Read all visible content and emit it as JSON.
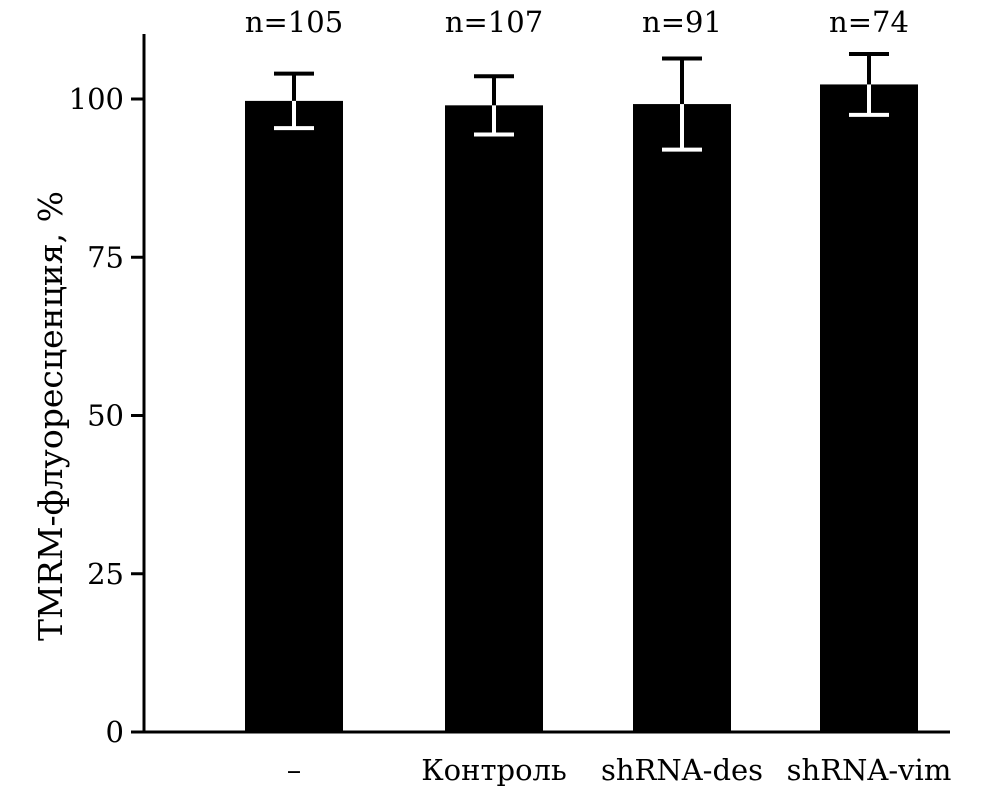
{
  "chart_data": {
    "type": "bar",
    "title": "",
    "xlabel": "",
    "ylabel": "TMRM-флуоресценция, %",
    "ylim": [
      0,
      110
    ],
    "yticks": [
      0,
      25,
      50,
      75,
      100
    ],
    "ytick_labels": [
      "0",
      "25",
      "50",
      "75",
      "100"
    ],
    "categories": [
      "–",
      "Контроль",
      "shRNA-des",
      "shRNA-vim"
    ],
    "values": [
      99.7,
      99.0,
      99.2,
      102.3
    ],
    "errors": [
      4.3,
      4.6,
      7.2,
      4.8
    ],
    "n_labels": [
      "n=105",
      "n=107",
      "n=91",
      "n=74"
    ],
    "bar_color": "#000000",
    "error_bar_color": "#ffffff",
    "grid": false
  }
}
